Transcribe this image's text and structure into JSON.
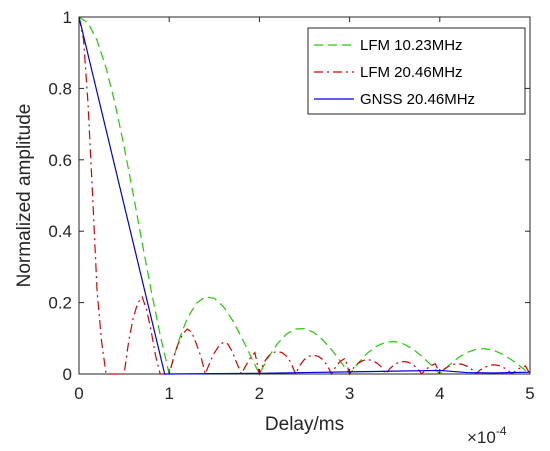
{
  "chart_data": {
    "type": "line",
    "xlabel": "Delay/ms",
    "ylabel": "Normalized amplitude",
    "x_exponent": {
      "base": "×10",
      "power": "-4"
    },
    "xlim": [
      0,
      5
    ],
    "ylim": [
      0,
      1
    ],
    "x_ticks": [
      "0",
      "1",
      "2",
      "3",
      "4",
      "5"
    ],
    "y_ticks": [
      "0",
      "0.2",
      "0.4",
      "0.6",
      "0.8",
      "1"
    ],
    "x_tick_values": [
      0,
      1,
      2,
      3,
      4,
      5
    ],
    "y_tick_values": [
      0,
      0.2,
      0.4,
      0.6,
      0.8,
      1
    ],
    "grid": false,
    "box": true,
    "legend_position": "top-right",
    "series": [
      {
        "name": "LFM 10.23MHz",
        "color": "#22cc00",
        "dash": "dashed",
        "x": [
          0,
          0.1,
          0.2,
          0.3,
          0.4,
          0.5,
          0.6,
          0.7,
          0.8,
          0.9,
          1.0,
          1.1,
          1.2,
          1.3,
          1.4,
          1.5,
          1.6,
          1.7,
          1.8,
          1.9,
          2.0,
          2.1,
          2.2,
          2.3,
          2.4,
          2.5,
          2.6,
          2.7,
          2.8,
          2.9,
          3.0,
          3.1,
          3.2,
          3.3,
          3.4,
          3.5,
          3.6,
          3.7,
          3.8,
          3.9,
          4.0,
          4.1,
          4.2,
          4.3,
          4.4,
          4.5,
          4.6,
          4.7,
          4.8,
          4.9,
          5.0
        ],
        "values": [
          1.0,
          0.983,
          0.935,
          0.858,
          0.757,
          0.637,
          0.505,
          0.368,
          0.234,
          0.109,
          0.0,
          0.09,
          0.156,
          0.198,
          0.216,
          0.212,
          0.189,
          0.151,
          0.104,
          0.052,
          0.0,
          0.047,
          0.085,
          0.112,
          0.126,
          0.127,
          0.117,
          0.096,
          0.068,
          0.035,
          0.0,
          0.032,
          0.059,
          0.078,
          0.089,
          0.091,
          0.084,
          0.07,
          0.05,
          0.026,
          0.0,
          0.024,
          0.045,
          0.06,
          0.069,
          0.071,
          0.066,
          0.055,
          0.039,
          0.02,
          0.0
        ]
      },
      {
        "name": "LFM 20.46MHz",
        "color": "#dd0000",
        "dash": "dashdot",
        "x": [
          0,
          0.05,
          0.1,
          0.15,
          0.2,
          0.25,
          0.3,
          0.35,
          0.4,
          0.45,
          0.5,
          0.55,
          0.6,
          0.65,
          0.7,
          0.75,
          0.8,
          0.85,
          0.9,
          0.95,
          1.0,
          1.05,
          1.1,
          1.15,
          1.2,
          1.25,
          1.3,
          1.35,
          1.4,
          1.45,
          1.5,
          1.55,
          1.6,
          1.65,
          1.7,
          1.75,
          1.8,
          1.85,
          1.9,
          1.95,
          2.0,
          2.05,
          2.1,
          2.15,
          2.2,
          2.25,
          2.3,
          2.35,
          2.4,
          2.45,
          2.5,
          2.55,
          2.6,
          2.65,
          2.7,
          2.75,
          2.8,
          2.85,
          2.9,
          2.95,
          3.0,
          3.05,
          3.1,
          3.15,
          3.2,
          3.25,
          3.3,
          3.35,
          3.4,
          3.45,
          3.5,
          3.55,
          3.6,
          3.65,
          3.7,
          3.75,
          3.8,
          3.85,
          3.9,
          3.95,
          4.0,
          4.05,
          4.1,
          4.15,
          4.2,
          4.25,
          4.3,
          4.35,
          4.4,
          4.45,
          4.5,
          4.55,
          4.6,
          4.65,
          4.7,
          4.75,
          4.8,
          4.85,
          4.9,
          4.95,
          5.0
        ],
        "values": [
          1.0,
          0.938,
          0.757,
          0.505,
          0.234,
          0.092,
          0.0,
          0.0,
          0.0,
          0.0,
          0.0,
          0.09,
          0.156,
          0.198,
          0.216,
          0.18,
          0.12,
          0.05,
          0.0,
          0.0,
          0.0,
          0.047,
          0.085,
          0.112,
          0.126,
          0.117,
          0.085,
          0.05,
          0.0,
          0.032,
          0.059,
          0.078,
          0.089,
          0.084,
          0.062,
          0.03,
          0.0,
          0.024,
          0.045,
          0.06,
          0.0,
          0.032,
          0.05,
          0.06,
          0.063,
          0.06,
          0.05,
          0.032,
          0.0,
          0.025,
          0.041,
          0.05,
          0.052,
          0.05,
          0.041,
          0.025,
          0.0,
          0.022,
          0.036,
          0.044,
          0.0,
          0.02,
          0.031,
          0.038,
          0.04,
          0.038,
          0.031,
          0.02,
          0.0,
          0.016,
          0.027,
          0.033,
          0.035,
          0.033,
          0.027,
          0.016,
          0.0,
          0.014,
          0.023,
          0.029,
          0.0,
          0.014,
          0.022,
          0.027,
          0.029,
          0.027,
          0.022,
          0.014,
          0.0,
          0.012,
          0.019,
          0.024,
          0.026,
          0.024,
          0.019,
          0.012,
          0.0,
          0.011,
          0.018,
          0.022,
          0.0
        ]
      },
      {
        "name": "GNSS 20.46MHz",
        "color": "#0000dd",
        "dash": "solid",
        "x": [
          0,
          0.95,
          1.0,
          1.5,
          2.0,
          2.5,
          3.0,
          3.5,
          4.0,
          4.3,
          4.6,
          5.0
        ],
        "values": [
          1.0,
          0.0,
          0.0,
          0.001,
          0.002,
          0.004,
          0.006,
          0.008,
          0.01,
          0.004,
          0.003,
          0.005
        ]
      }
    ]
  }
}
